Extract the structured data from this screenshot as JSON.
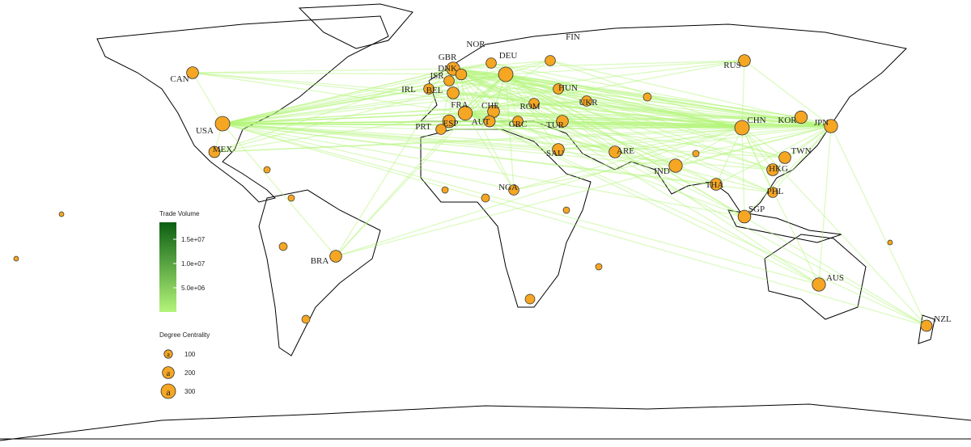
{
  "legend": {
    "trade_volume": {
      "title": "Trade Volume",
      "lim": [
        0,
        18500000
      ],
      "ticks": [
        {
          "value": 15000000,
          "label": "1.5e+07"
        },
        {
          "value": 10000000,
          "label": "1.0e+07"
        },
        {
          "value": 5000000,
          "label": "5.0e+06"
        }
      ]
    },
    "degree_centrality": {
      "title": "Degree Centrality",
      "symbol": "a",
      "ticks": [
        100,
        200,
        300
      ]
    }
  },
  "nodes": [
    {
      "label": "CAN",
      "degree": 200
    },
    {
      "label": "USA",
      "degree": 300
    },
    {
      "label": "MEX",
      "degree": 180
    },
    {
      "label": "BRA",
      "degree": 200
    },
    {
      "label": "GBR",
      "degree": 250
    },
    {
      "label": "NOR",
      "degree": 150
    },
    {
      "label": "DEU",
      "degree": 300
    },
    {
      "label": "FIN",
      "degree": 150
    },
    {
      "label": "ISR",
      "degree": 150
    },
    {
      "label": "DNK",
      "degree": 170
    },
    {
      "label": "IRL",
      "degree": 150
    },
    {
      "label": "BEL",
      "degree": 200
    },
    {
      "label": "FRA",
      "degree": 280
    },
    {
      "label": "CHE",
      "degree": 200
    },
    {
      "label": "ESP",
      "degree": 230
    },
    {
      "label": "PRT",
      "degree": 150
    },
    {
      "label": "AUT",
      "degree": 180
    },
    {
      "label": "GRC",
      "degree": 150
    },
    {
      "label": "ROM",
      "degree": 150
    },
    {
      "label": "HUN",
      "degree": 150
    },
    {
      "label": "UKR",
      "degree": 150
    },
    {
      "label": "TUR",
      "degree": 200
    },
    {
      "label": "SAU",
      "degree": 200
    },
    {
      "label": "ARE",
      "degree": 200
    },
    {
      "label": "IND",
      "degree": 250
    },
    {
      "label": "NGA",
      "degree": 150
    },
    {
      "label": "RUS",
      "degree": 200
    },
    {
      "label": "CHN",
      "degree": 300
    },
    {
      "label": "KOR",
      "degree": 220
    },
    {
      "label": "JPN",
      "degree": 250
    },
    {
      "label": "TWN",
      "degree": 200
    },
    {
      "label": "HKG",
      "degree": 200
    },
    {
      "label": "THA",
      "degree": 200
    },
    {
      "label": "PHL",
      "degree": 150
    },
    {
      "label": "SGP",
      "degree": 230
    },
    {
      "label": "AUS",
      "degree": 250
    },
    {
      "label": "NZL",
      "degree": 180
    }
  ]
}
